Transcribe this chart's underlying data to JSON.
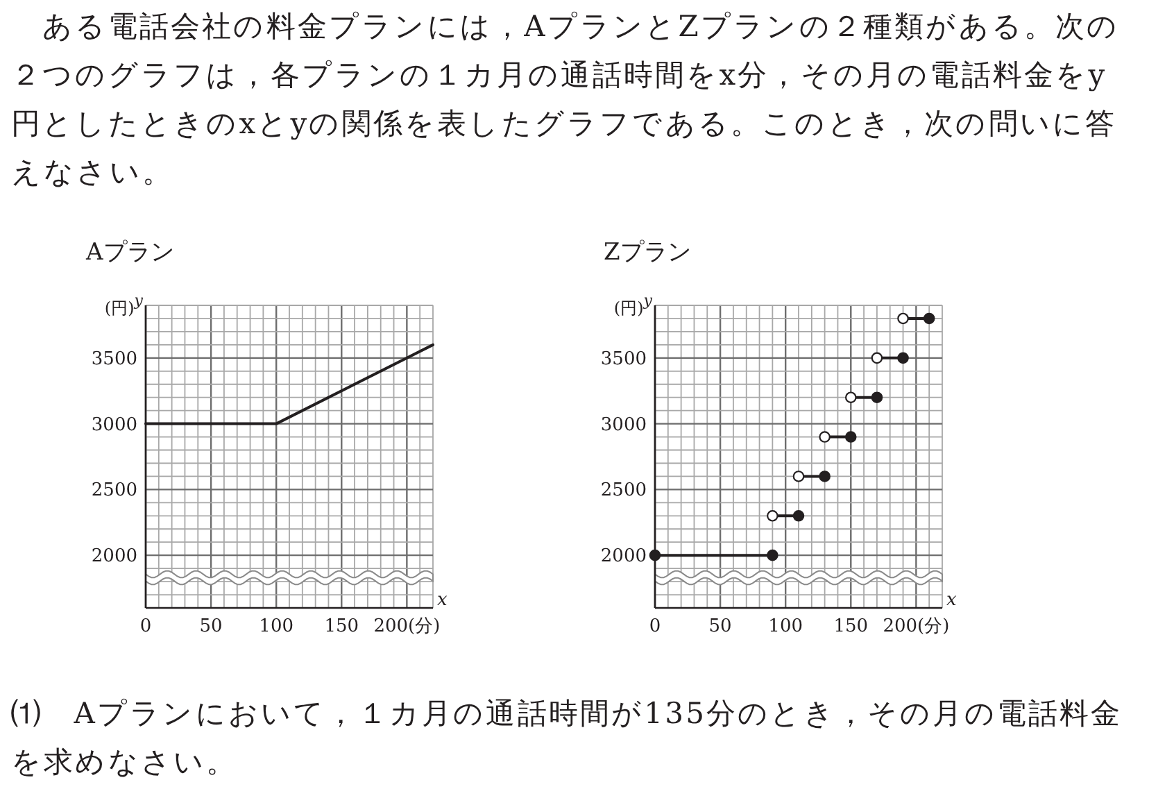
{
  "chart_data": [
    {
      "type": "line",
      "title": "Aプラン",
      "ylabel": "(円)$^{y}$",
      "xlabel": "x",
      "xlim": [
        0,
        220
      ],
      "ylim": [
        1600,
        3900
      ],
      "xticks": [
        0,
        {
          "value": 10,
          "label": null
        },
        {
          "value": 20,
          "label": null
        },
        {
          "value": 30,
          "label": null
        },
        {
          "value": 40,
          "label": null
        },
        50,
        {
          "value": 60,
          "label": null
        },
        {
          "value": 70,
          "label": null
        },
        {
          "value": 80,
          "label": null
        },
        {
          "value": 90,
          "label": null
        },
        100,
        {
          "value": 110,
          "label": null
        },
        {
          "value": 120,
          "label": null
        },
        {
          "value": 130,
          "label": null
        },
        {
          "value": 140,
          "label": null
        },
        150,
        {
          "value": 160,
          "label": null
        },
        {
          "value": 170,
          "label": null
        },
        {
          "value": 180,
          "label": null
        },
        {
          "value": 190,
          "label": null
        },
        {
          "value": 200,
          "label": "200(分)"
        },
        {
          "value": 210,
          "label": null
        },
        {
          "value": 220,
          "label": null
        }
      ],
      "yticks": [
        {
          "value": 1600,
          "label": null
        },
        {
          "value": 1700,
          "label": null
        },
        {
          "value": 1800,
          "label": null
        },
        {
          "value": 1900,
          "label": null
        },
        2000,
        {
          "value": 2100,
          "label": null
        },
        {
          "value": 2200,
          "label": null
        },
        {
          "value": 2300,
          "label": null
        },
        {
          "value": 2400,
          "label": null
        },
        2500,
        {
          "value": 2600,
          "label": null
        },
        {
          "value": 2700,
          "label": null
        },
        {
          "value": 2800,
          "label": null
        },
        {
          "value": 2900,
          "label": null
        },
        3000,
        {
          "value": 3100,
          "label": null
        },
        {
          "value": 3200,
          "label": null
        },
        {
          "value": 3300,
          "label": null
        },
        {
          "value": 3400,
          "label": null
        },
        3500,
        {
          "value": 3600,
          "label": null
        },
        {
          "value": 3700,
          "label": null
        },
        {
          "value": 3800,
          "label": null
        },
        {
          "value": 3900,
          "label": null
        }
      ],
      "grid": true,
      "annotations": [
        "　ある電話会社の料金プランには，AプランとZプランの２種類がある。次の２つのグラフは，各プランの１カ月の通話時間をx分，その月の電話料金をy円としたときのxとyの関係を表したグラフである。このとき，次の問いに答えなさい。"
      ],
      "series": [
        {
          "type": "line",
          "color": "#231f20",
          "x": [
            0,
            100,
            220
          ],
          "values": [
            3000,
            3000,
            3600
          ]
        }
      ]
    },
    {
      "type": "line",
      "title": "Zプラン",
      "ylabel": "(円)$^{y}$",
      "xlabel": "x",
      "xlim": [
        0,
        220
      ],
      "ylim": [
        1600,
        3900
      ],
      "xticks": [
        0,
        {
          "value": 10,
          "label": null
        },
        {
          "value": 20,
          "label": null
        },
        {
          "value": 30,
          "label": null
        },
        {
          "value": 40,
          "label": null
        },
        50,
        {
          "value": 60,
          "label": null
        },
        {
          "value": 70,
          "label": null
        },
        {
          "value": 80,
          "label": null
        },
        {
          "value": 90,
          "label": null
        },
        100,
        {
          "value": 110,
          "label": null
        },
        {
          "value": 120,
          "label": null
        },
        {
          "value": 130,
          "label": null
        },
        {
          "value": 140,
          "label": null
        },
        150,
        {
          "value": 160,
          "label": null
        },
        {
          "value": 170,
          "label": null
        },
        {
          "value": 180,
          "label": null
        },
        {
          "value": 190,
          "label": null
        },
        {
          "value": 200,
          "label": "200(分)"
        },
        {
          "value": 210,
          "label": null
        },
        {
          "value": 220,
          "label": null
        }
      ],
      "yticks": [
        {
          "value": 1600,
          "label": null
        },
        {
          "value": 1700,
          "label": null
        },
        {
          "value": 1800,
          "label": null
        },
        {
          "value": 1900,
          "label": null
        },
        2000,
        {
          "value": 2100,
          "label": null
        },
        {
          "value": 2200,
          "label": null
        },
        {
          "value": 2300,
          "label": null
        },
        {
          "value": 2400,
          "label": null
        },
        2500,
        {
          "value": 2600,
          "label": null
        },
        {
          "value": 2700,
          "label": null
        },
        {
          "value": 2800,
          "label": null
        },
        {
          "value": 2900,
          "label": null
        },
        3000,
        {
          "value": 3100,
          "label": null
        },
        {
          "value": 3200,
          "label": null
        },
        {
          "value": 3300,
          "label": null
        },
        {
          "value": 3400,
          "label": null
        },
        3500,
        {
          "value": 3600,
          "label": null
        },
        {
          "value": 3700,
          "label": null
        },
        {
          "value": 3800,
          "label": null
        },
        {
          "value": 3900,
          "label": null
        }
      ],
      "grid": true,
      "annotations": [
        "⑴　Aプランにおいて，１カ月の通話時間が135分のとき，その月の電話料金を求めなさい。"
      ],
      "series": [
        {
          "type": "line",
          "color": "#231f20",
          "x": [
            0,
            90
          ],
          "values": [
            2000,
            2000
          ]
        },
        {
          "type": "line",
          "color": "#231f20",
          "x": [
            90,
            110
          ],
          "values": [
            2300,
            2300
          ]
        },
        {
          "type": "line",
          "color": "#231f20",
          "x": [
            110,
            130
          ],
          "values": [
            2600,
            2600
          ]
        },
        {
          "type": "line",
          "color": "#231f20",
          "x": [
            130,
            150
          ],
          "values": [
            2900,
            2900
          ]
        },
        {
          "type": "line",
          "color": "#231f20",
          "x": [
            150,
            170
          ],
          "values": [
            3200,
            3200
          ]
        },
        {
          "type": "line",
          "color": "#231f20",
          "x": [
            170,
            190
          ],
          "values": [
            3500,
            3500
          ]
        },
        {
          "type": "line",
          "color": "#231f20",
          "x": [
            190,
            210
          ],
          "values": [
            3800,
            3800
          ]
        },
        {
          "type": "scatter",
          "marker": "circle",
          "color": "#ffffff",
          "x": [
            90,
            110,
            130,
            150,
            170,
            190
          ],
          "values": [
            2300,
            2600,
            2900,
            3200,
            3500,
            3800
          ]
        },
        {
          "type": "scatter",
          "marker": "circle",
          "color": "#231f20",
          "x": [
            0,
            90,
            110,
            130,
            150,
            170,
            190,
            210
          ],
          "values": [
            2000,
            2000,
            2300,
            2600,
            2900,
            3200,
            3500,
            3800
          ]
        }
      ]
    }
  ]
}
